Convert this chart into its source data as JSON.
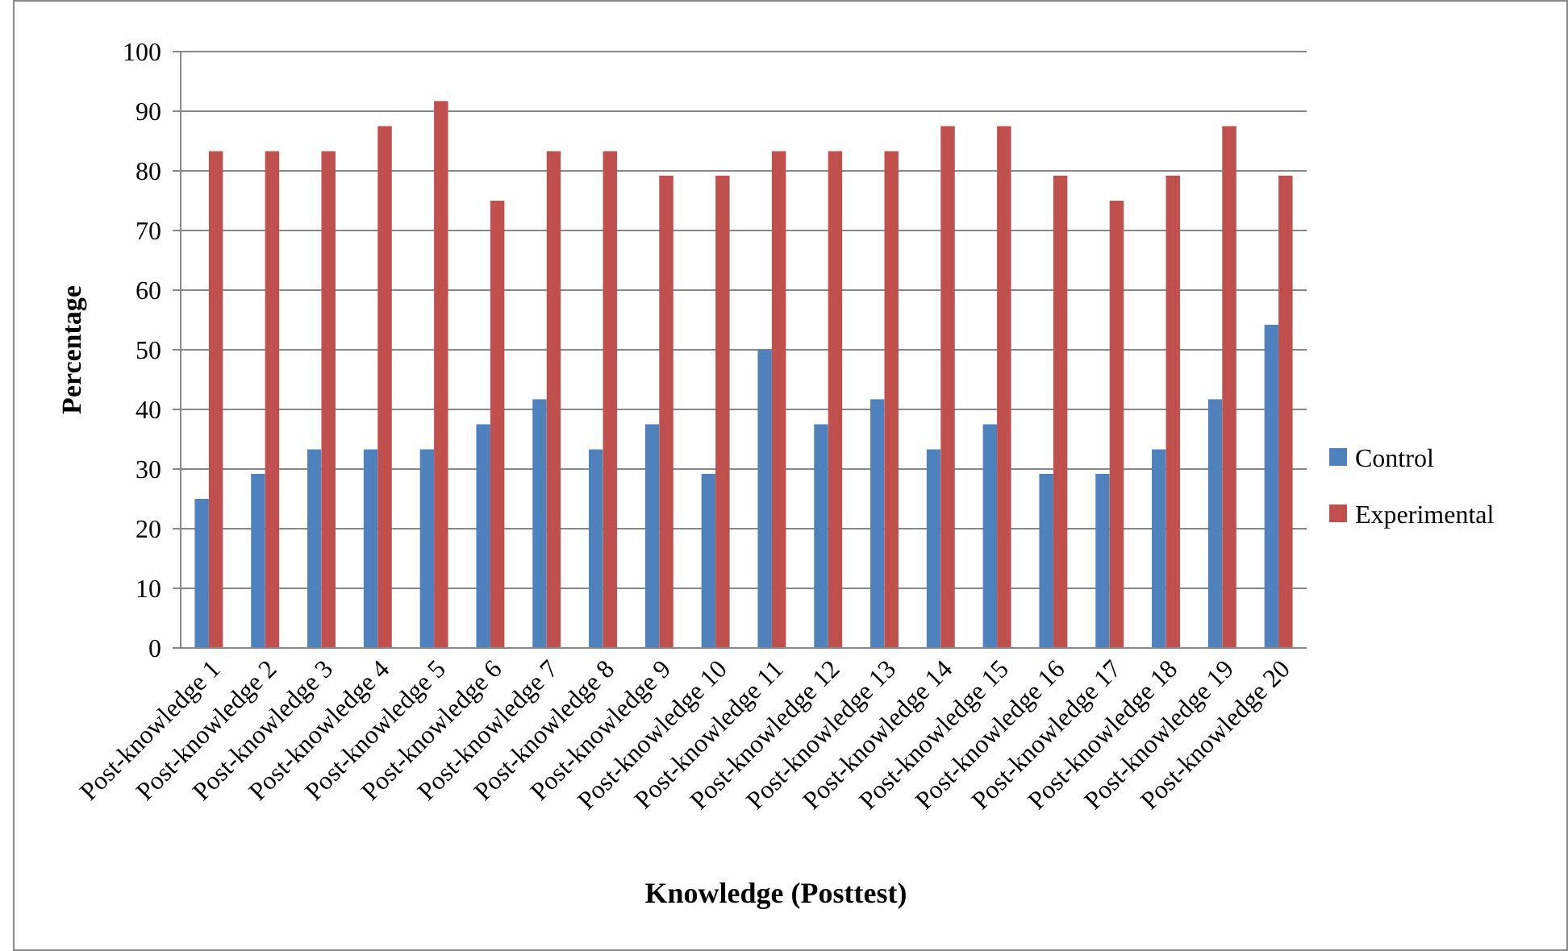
{
  "chart_data": {
    "type": "bar",
    "xlabel": "Knowledge (Posttest)",
    "ylabel": "Percentage",
    "categories": [
      "Post-knowledge 1",
      "Post-knowledge 2",
      "Post-knowledge 3",
      "Post-knowledge 4",
      "Post-knowledge 5",
      "Post-knowledge 6",
      "Post-knowledge 7",
      "Post-knowledge 8",
      "Post-knowledge 9",
      "Post-knowledge 10",
      "Post-knowledge 11",
      "Post-knowledge 12",
      "Post-knowledge 13",
      "Post-knowledge 14",
      "Post-knowledge 15",
      "Post-knowledge 16",
      "Post-knowledge 17",
      "Post-knowledge 18",
      "Post-knowledge 19",
      "Post-knowledge 20"
    ],
    "series": [
      {
        "name": "Control",
        "color": "#4f81bd",
        "values": [
          25,
          29.2,
          33.3,
          33.3,
          33.3,
          37.5,
          41.7,
          33.3,
          37.5,
          29.2,
          50,
          37.5,
          41.7,
          33.3,
          37.5,
          29.2,
          29.2,
          33.3,
          41.7,
          54.2
        ]
      },
      {
        "name": "Experimental",
        "color": "#c0504d",
        "values": [
          83.3,
          83.3,
          83.3,
          87.5,
          91.7,
          75,
          83.3,
          83.3,
          79.2,
          79.2,
          83.3,
          83.3,
          83.3,
          87.5,
          87.5,
          79.2,
          75,
          79.2,
          87.5,
          79.2
        ]
      }
    ],
    "ylim": [
      0,
      100
    ],
    "yticks": [
      0,
      10,
      20,
      30,
      40,
      50,
      60,
      70,
      80,
      90,
      100
    ],
    "grid": "y",
    "legend": "right"
  }
}
